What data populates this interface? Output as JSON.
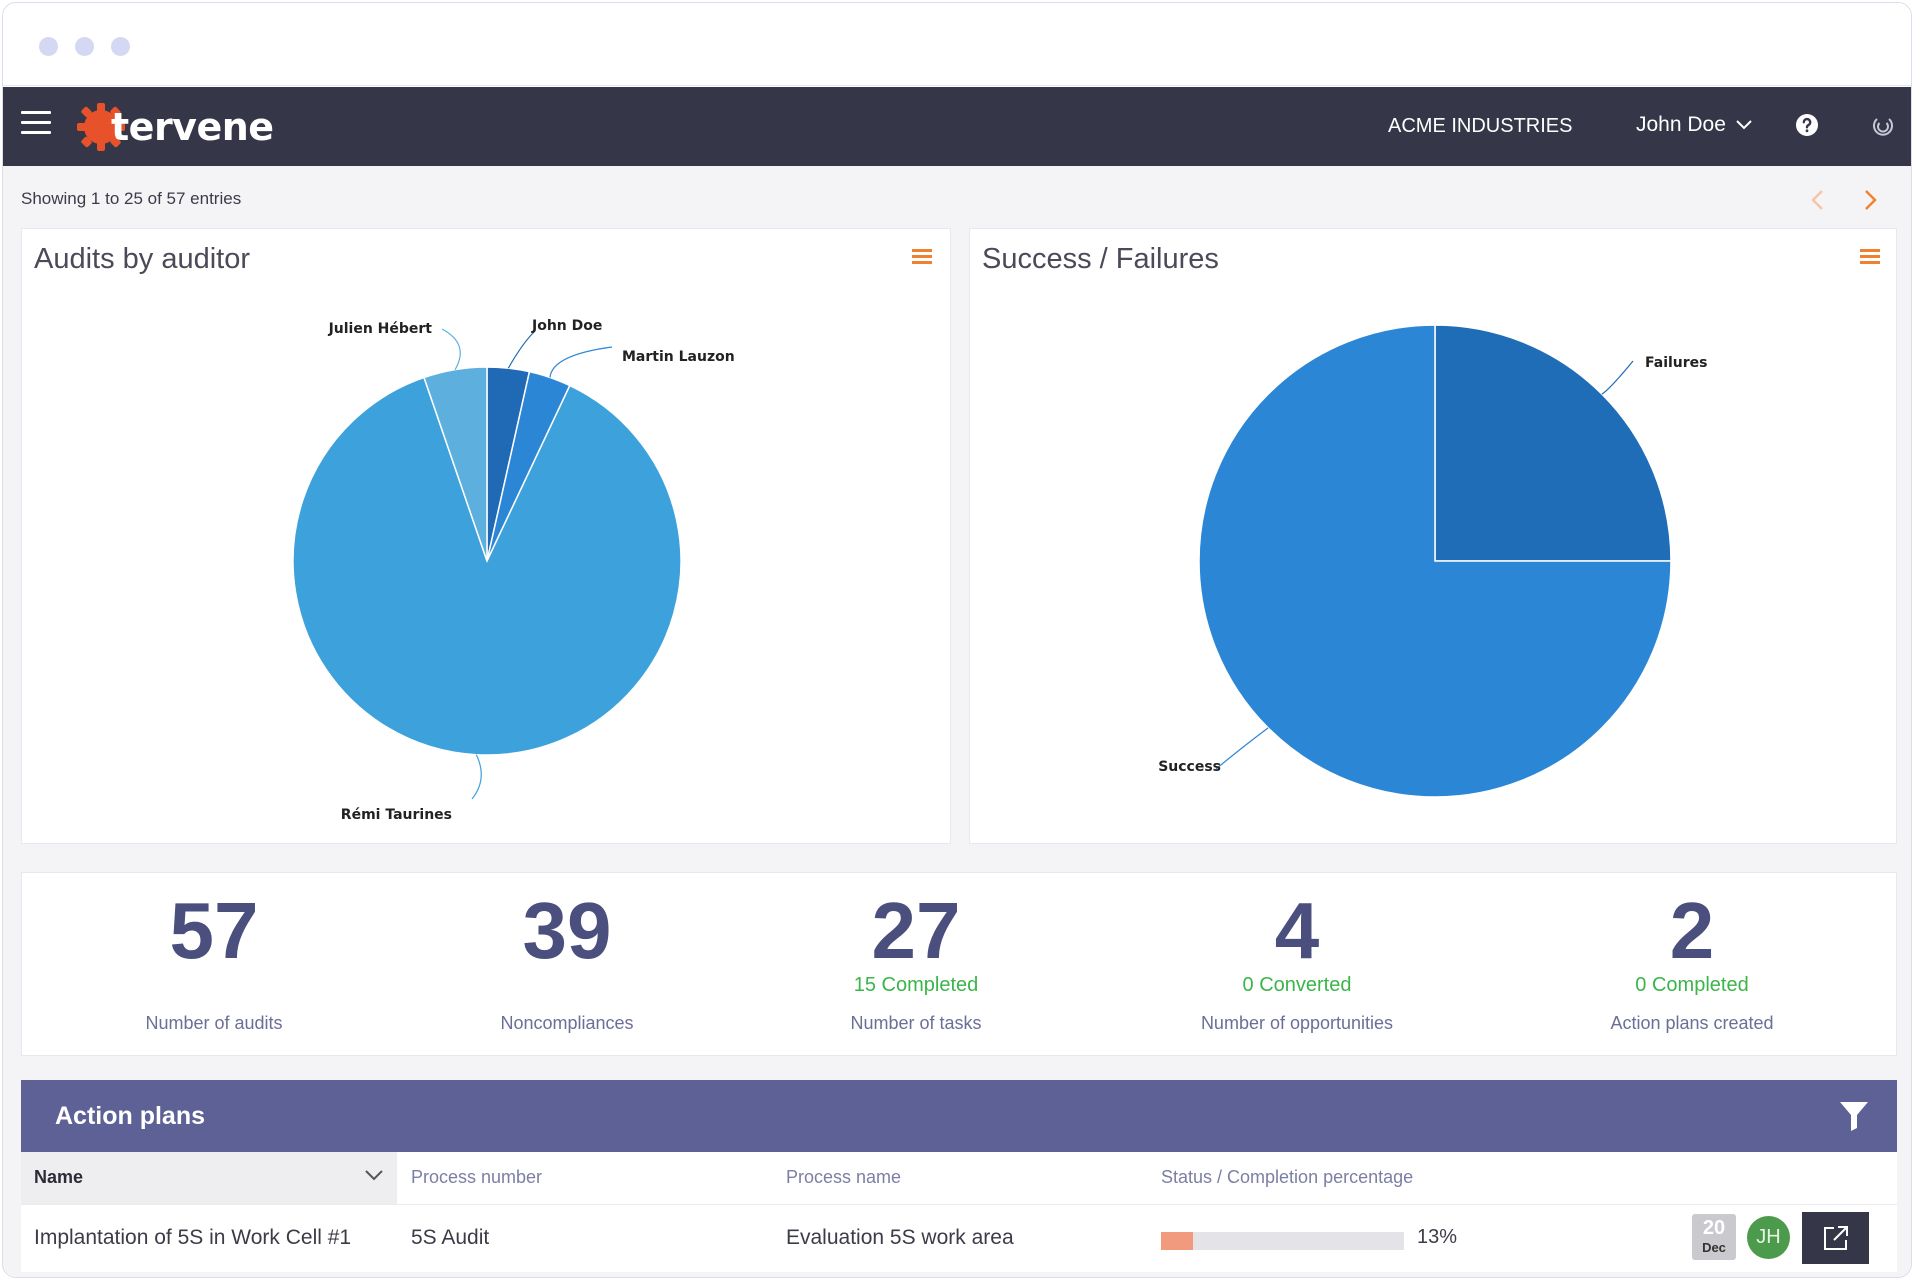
{
  "nav": {
    "logo": "tervene",
    "company": "ACME INDUSTRIES",
    "user": "John Doe"
  },
  "pagination": {
    "showing": "Showing 1 to 25 of 57 entries"
  },
  "cards": {
    "audits_title": "Audits by auditor",
    "success_title": "Success / Failures"
  },
  "chart_data": [
    {
      "type": "pie",
      "title": "Audits by auditor",
      "slices": [
        {
          "label": "John Doe",
          "value": 2
        },
        {
          "label": "Martin Lauzon",
          "value": 2
        },
        {
          "label": "Rémi Taurines",
          "value": 50
        },
        {
          "label": "Julien Hébert",
          "value": 3
        }
      ],
      "colors": [
        "#2069b5",
        "#2b86d6",
        "#3da1dc",
        "#5db0de"
      ]
    },
    {
      "type": "pie",
      "title": "Success / Failures",
      "slices": [
        {
          "label": "Failures",
          "value": 25
        },
        {
          "label": "Success",
          "value": 75
        }
      ],
      "colors": [
        "#1f6cb7",
        "#2b86d6"
      ]
    }
  ],
  "stats": [
    {
      "value": "57",
      "sub": "",
      "label": "Number of audits"
    },
    {
      "value": "39",
      "sub": "",
      "label": "Noncompliances"
    },
    {
      "value": "27",
      "sub": "15 Completed",
      "label": "Number of tasks"
    },
    {
      "value": "4",
      "sub": "0 Converted",
      "label": "Number of opportunities"
    },
    {
      "value": "2",
      "sub": "0 Completed",
      "label": "Action plans created"
    }
  ],
  "action_plans": {
    "title": "Action plans",
    "columns": [
      "Name",
      "Process number",
      "Process name",
      "Status / Completion percentage"
    ],
    "rows": [
      {
        "name": "Implantation of 5S in Work Cell #1",
        "process_number": "5S Audit",
        "process_name": "Evaluation 5S work area",
        "completion": 0.13,
        "completion_label": "13%",
        "date_day": "20",
        "date_month": "Dec",
        "avatar": "JH"
      }
    ]
  },
  "icons": {
    "menu": "hamburger-icon",
    "help": "help-circle-icon",
    "logout": "power-icon",
    "prev": "chevron-left-icon",
    "next": "chevron-right-icon",
    "filter": "filter-icon",
    "open": "external-link-icon"
  }
}
